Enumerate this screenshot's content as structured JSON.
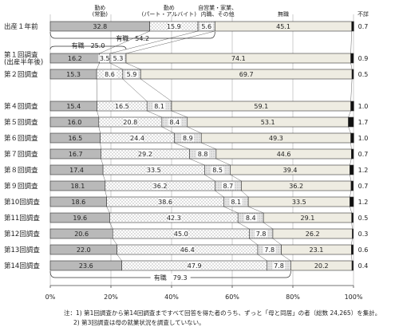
{
  "chart_data": {
    "type": "stacked-bar-horizontal",
    "categories": [
      "出産１年前",
      "第１回調査\n(出産半年後)",
      "第２回調査",
      null,
      "第４回調査",
      "第５回調査",
      "第６回調査",
      "第７回調査",
      "第８回調査",
      "第９回調査",
      "第10回調査",
      "第11回調査",
      "第12回調査",
      "第13回調査",
      "第14回調査"
    ],
    "series": [
      {
        "name": "勤め\n(常勤)",
        "color": "#b9b9b9",
        "values": [
          32.8,
          16.2,
          15.3,
          null,
          15.4,
          16.0,
          16.5,
          16.7,
          17.4,
          18.1,
          18.6,
          19.6,
          20.6,
          22.0,
          23.6
        ],
        "value_labels": [
          "32.8",
          "16.2",
          "15.3",
          null,
          "15.4",
          "16.0",
          "16.5",
          "16.7",
          "17.4",
          "18.1",
          "18.6",
          "19.6",
          "20.6",
          "22.0",
          "23.6"
        ]
      },
      {
        "name": "勤め\n(パート・アルバイト)",
        "color": "#ffffff",
        "values": [
          15.9,
          3.5,
          8.6,
          null,
          16.5,
          20.8,
          24.4,
          29.2,
          33.5,
          36.2,
          38.6,
          42.3,
          45.0,
          46.4,
          47.9
        ],
        "value_labels": [
          "15.9",
          "3.5",
          "8.6",
          null,
          "16.5",
          "20.8",
          "24.4",
          "29.2",
          "33.5",
          "36.2",
          "38.6",
          "42.3",
          "45.0",
          "46.4",
          "47.9"
        ]
      },
      {
        "name": "自営業・家業、\n内職、その他",
        "color": "#e6e6e6",
        "values": [
          5.6,
          5.3,
          5.9,
          null,
          8.1,
          8.4,
          8.9,
          8.8,
          8.5,
          8.7,
          8.1,
          8.4,
          7.8,
          7.8,
          7.8
        ],
        "value_labels": [
          "5.6",
          "5.3",
          "5.9",
          null,
          "8.1",
          "8.4",
          "8.9",
          "8.8",
          "8.5",
          "8.7",
          "8.1",
          "8.4",
          "7.8",
          "7.8",
          "7.8"
        ]
      },
      {
        "name": "無職",
        "color": "#eeece2",
        "values": [
          45.1,
          74.1,
          69.7,
          null,
          59.1,
          53.1,
          49.3,
          44.6,
          39.4,
          36.2,
          33.5,
          29.1,
          26.2,
          23.1,
          20.2
        ],
        "value_labels": [
          "45.1",
          "74.1",
          "69.7",
          null,
          "59.1",
          "53.1",
          "49.3",
          "44.6",
          "39.4",
          "36.2",
          "33.5",
          "29.1",
          "26.2",
          "23.1",
          "20.2"
        ]
      },
      {
        "name": "不詳",
        "color": "#111111",
        "values": [
          0.7,
          0.9,
          0.5,
          null,
          1.0,
          1.7,
          1.0,
          0.7,
          1.2,
          0.7,
          1.2,
          0.5,
          0.3,
          0.6,
          0.4
        ],
        "value_labels": [
          "0.7",
          "0.9",
          "0.5",
          null,
          "1.0",
          "1.7",
          "1.0",
          "0.7",
          "1.2",
          "0.7",
          "1.2",
          "0.5",
          "0.3",
          "0.6",
          "0.4"
        ]
      }
    ],
    "xlim": [
      0,
      100
    ],
    "xticks": [
      {
        "value": 0,
        "label": "0%"
      },
      {
        "value": 20,
        "label": "20%"
      },
      {
        "value": 40,
        "label": "40%"
      },
      {
        "value": 60,
        "label": "60%"
      },
      {
        "value": 80,
        "label": "80%"
      },
      {
        "value": 100,
        "label": "100%"
      }
    ],
    "annotations": [
      {
        "text": "有職　54.2"
      },
      {
        "text": "有職　25.0"
      },
      {
        "text": "有職　79.3"
      }
    ],
    "notes": [
      "注：1) 第1回調査から第14回調査まですべて回答を得た者のうち、ずっと「母と同居」の者（総数 24,265）を集計。",
      "2) 第3回調査は母の就業状況を調査していない。"
    ]
  }
}
